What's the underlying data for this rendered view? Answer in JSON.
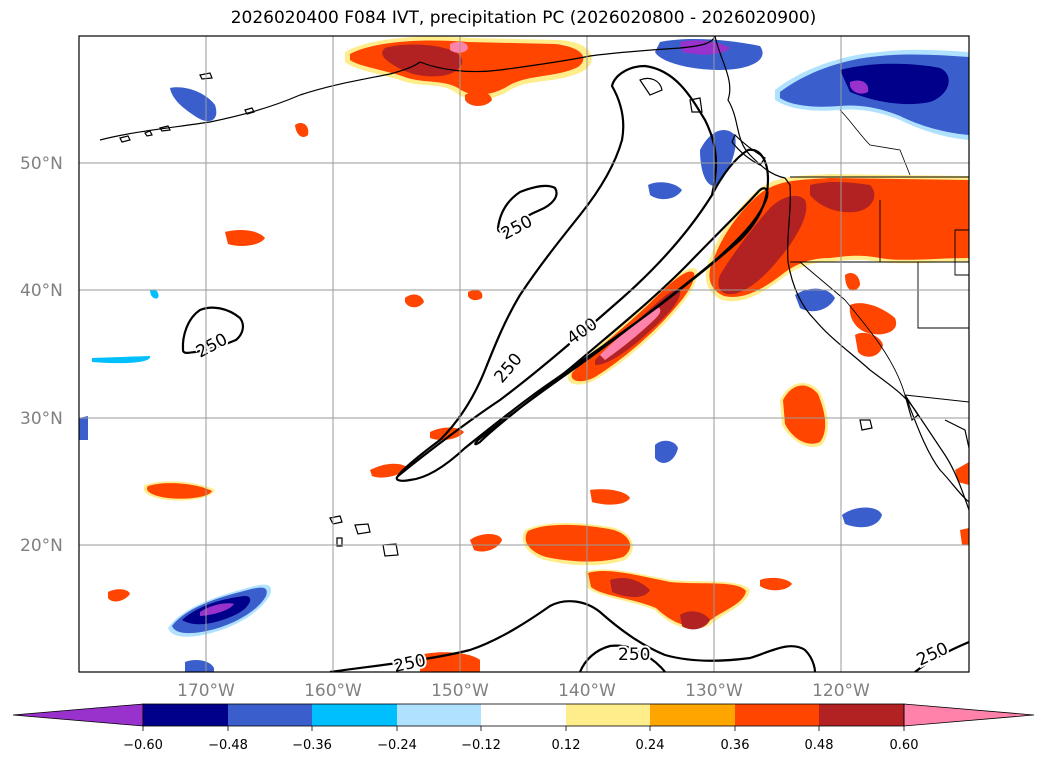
{
  "title": "2026020400 F084 IVT, precipitation PC (2026020800 - 2026020900)",
  "lat_labels": [
    "50°N",
    "40°N",
    "30°N",
    "20°N"
  ],
  "lon_labels": [
    "170°W",
    "160°W",
    "150°W",
    "140°W",
    "130°W",
    "120°W"
  ],
  "contour_labels": [
    "250",
    "250",
    "250",
    "400",
    "250",
    "250",
    "250"
  ],
  "colorbar": {
    "ticks": [
      "−0.60",
      "−0.48",
      "−0.36",
      "−0.24",
      "−0.12",
      "0.12",
      "0.24",
      "0.36",
      "0.48",
      "0.60"
    ],
    "colors": [
      "#9932cc",
      "#00008b",
      "#3a5fcd",
      "#00bfff",
      "#b0e2ff",
      "#ffffff",
      "#ffec8b",
      "#ffa500",
      "#ff4500",
      "#b22222",
      "#ff82ab"
    ]
  },
  "colors": {
    "pos_low": "#ffec8b",
    "pos_mid": "#ffa500",
    "pos_high": "#ff4500",
    "pos_higher": "#b22222",
    "pos_max": "#ff82ab",
    "neg_low": "#b0e2ff",
    "neg_mid": "#00bfff",
    "neg_high": "#3a5fcd",
    "neg_higher": "#00008b",
    "neg_max": "#9932cc"
  }
}
